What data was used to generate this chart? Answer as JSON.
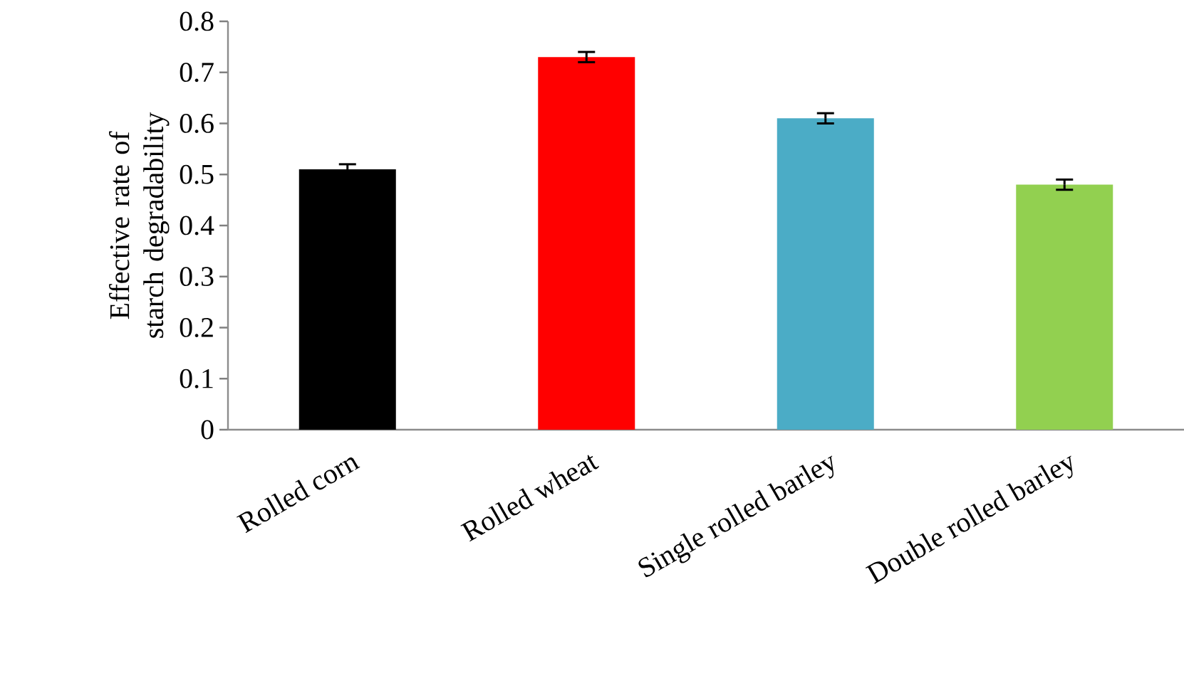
{
  "chart_data": {
    "type": "bar",
    "ylabel": "Effective rate of starch degradability",
    "categories": [
      "Rolled corn",
      "Rolled wheat",
      "Single rolled barley",
      "Double rolled barley"
    ],
    "values": [
      0.51,
      0.73,
      0.61,
      0.48
    ],
    "errors": [
      0.01,
      0.01,
      0.01,
      0.01
    ],
    "colors": [
      "#000000",
      "#ff0000",
      "#4bacc6",
      "#92d050"
    ],
    "ylim": [
      0,
      0.8
    ],
    "yticks": [
      0,
      0.1,
      0.2,
      0.3,
      0.4,
      0.5,
      0.6,
      0.7,
      0.8
    ],
    "grid": false
  }
}
